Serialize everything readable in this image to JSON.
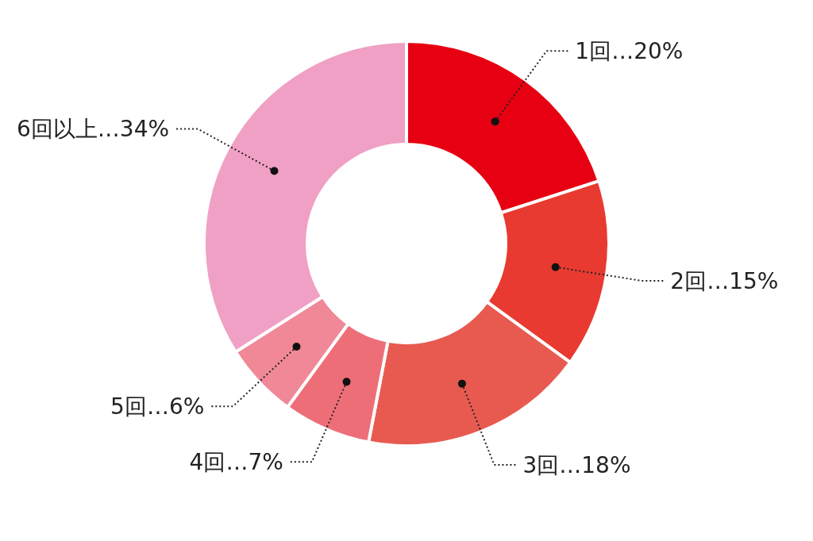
{
  "chart_data": {
    "type": "donut",
    "categories": [
      "1回",
      "2回",
      "3回",
      "4回",
      "5回",
      "6回以上"
    ],
    "values": [
      20,
      15,
      18,
      7,
      6,
      34
    ],
    "value_labels": [
      "…20%",
      "…15%",
      "…18%",
      "…7%",
      "…6%",
      "…34%"
    ],
    "colors": [
      "#e60012",
      "#e83a30",
      "#e85a50",
      "#ee6e78",
      "#f08898",
      "#f0a0c4"
    ]
  }
}
